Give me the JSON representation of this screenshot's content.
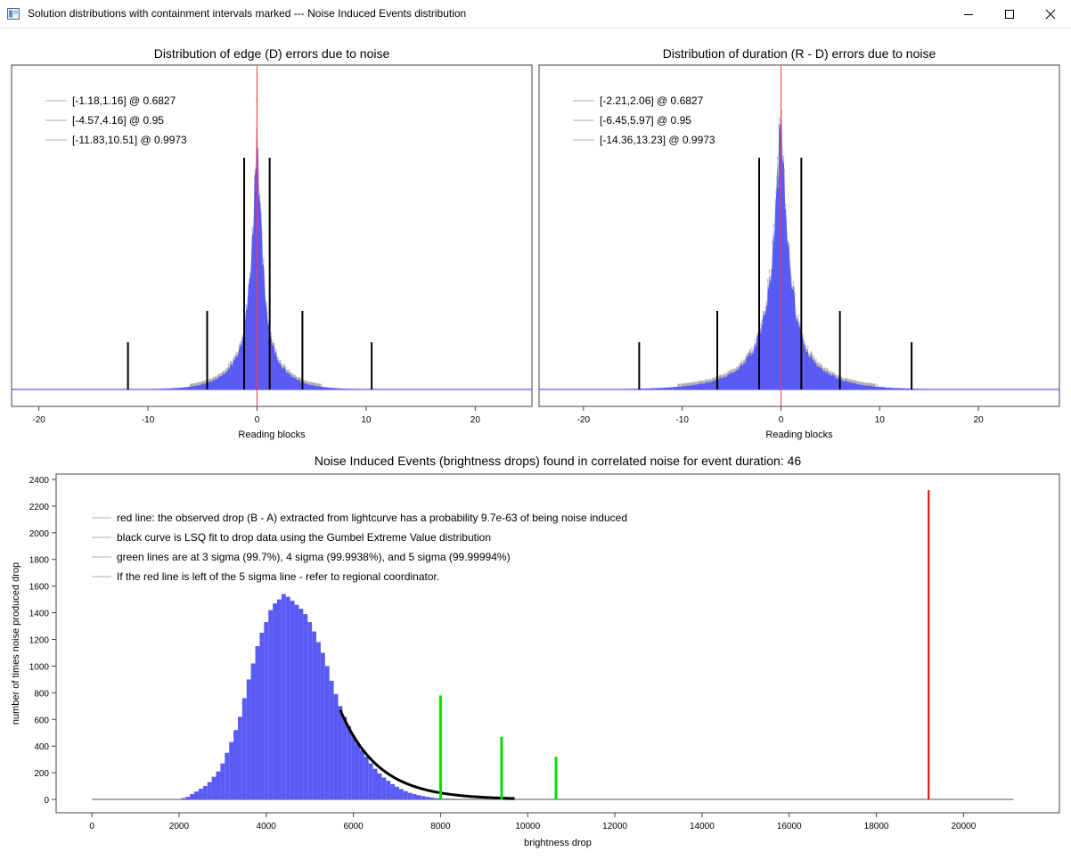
{
  "window": {
    "title": "Solution distributions with containment intervals marked --- Noise Induced Events distribution"
  },
  "colors": {
    "histogram": "#5a5af5",
    "center_line": "#ff3b3b",
    "interval_lines": "#000000",
    "sigma_lines": "#00e000",
    "observed_drop": "#e00000",
    "fit_curve": "#000000",
    "baseline": "#aaaaaa"
  },
  "icons": [
    "app-icon",
    "minimize-icon",
    "maximize-icon",
    "close-icon"
  ],
  "chart_data": [
    {
      "id": "edge",
      "type": "bar",
      "title": "Distribution of edge (D) errors due to noise",
      "xlabel": "Reading blocks",
      "ylabel": "",
      "xlim": [
        -22.5,
        25.2
      ],
      "xticks": [
        -20,
        -10,
        0,
        10,
        20
      ],
      "distribution": {
        "center": 0,
        "scale_left": 1.85,
        "scale_right": 1.75,
        "peak_relative": 1.0
      },
      "center_line_x": 0,
      "legend_position": "top-left",
      "legend": [
        "[-1.18,1.16] @ 0.6827",
        "[-4.57,4.16] @ 0.95",
        "[-11.83,10.51] @ 0.9973"
      ],
      "intervals": [
        {
          "lo": -1.18,
          "hi": 1.16,
          "prob": 0.6827
        },
        {
          "lo": -4.57,
          "hi": 4.16,
          "prob": 0.95
        },
        {
          "lo": -11.83,
          "hi": 10.51,
          "prob": 0.9973
        }
      ]
    },
    {
      "id": "duration",
      "type": "bar",
      "title": "Distribution of duration (R - D) errors due to noise",
      "xlabel": "Reading blocks",
      "ylabel": "",
      "xlim": [
        -24.5,
        28.2
      ],
      "xticks": [
        -20,
        -10,
        0,
        10,
        20
      ],
      "distribution": {
        "center": 0,
        "scale_left": 3.1,
        "scale_right": 2.9,
        "peak_relative": 1.0
      },
      "center_line_x": 0,
      "legend_position": "top-left",
      "legend": [
        "[-2.21,2.06] @ 0.6827",
        "[-6.45,5.97] @ 0.95",
        "[-14.36,13.23] @ 0.9973"
      ],
      "intervals": [
        {
          "lo": -2.21,
          "hi": 2.06,
          "prob": 0.6827
        },
        {
          "lo": -6.45,
          "hi": 5.97,
          "prob": 0.95
        },
        {
          "lo": -14.36,
          "hi": 13.23,
          "prob": 0.9973
        }
      ]
    },
    {
      "id": "drops",
      "type": "bar",
      "title": "Noise Induced Events (brightness drops) found in correlated noise for event duration: 46",
      "xlabel": "brightness drop",
      "ylabel": "number of times noise produced drop",
      "xlim": [
        -820,
        22200
      ],
      "ylim": [
        -100,
        2440
      ],
      "xticks": [
        0,
        2000,
        4000,
        6000,
        8000,
        10000,
        12000,
        14000,
        16000,
        18000,
        20000
      ],
      "yticks": [
        0,
        200,
        400,
        600,
        800,
        1000,
        1200,
        1400,
        1600,
        1800,
        2000,
        2200,
        2400
      ],
      "legend_position": "top-left",
      "legend": [
        "red line: the observed drop (B - A) extracted from lightcurve has a probability 9.7e-63 of being noise induced",
        "black curve is LSQ fit to drop data using the Gumbel Extreme Value distribution",
        "green lines are at 3 sigma (99.7%), 4 sigma (99.9938%), and 5 sigma (99.99994%)",
        "If the red line is left of the 5 sigma line - refer to regional coordinator."
      ],
      "histogram": {
        "x_start": 2050,
        "bin_width": 100,
        "counts": [
          10,
          20,
          40,
          60,
          80,
          100,
          130,
          170,
          210,
          270,
          350,
          430,
          520,
          620,
          760,
          900,
          1020,
          1150,
          1250,
          1330,
          1420,
          1470,
          1500,
          1540,
          1520,
          1490,
          1460,
          1430,
          1390,
          1330,
          1260,
          1180,
          1100,
          1000,
          890,
          790,
          700,
          620,
          550,
          480,
          420,
          370,
          320,
          270,
          230,
          195,
          165,
          140,
          115,
          95,
          78,
          62,
          50,
          40,
          32,
          25,
          19,
          14,
          10,
          7,
          5,
          3,
          2,
          1
        ]
      },
      "baseline": {
        "x_from": 0,
        "x_to": 21150,
        "y": 0
      },
      "fit_curve": {
        "x_from": 5700,
        "x_to": 9700,
        "y_at_start": 670,
        "decay": 880
      },
      "sigma_lines": [
        {
          "label": "3 sigma",
          "x": 8000,
          "height": 780
        },
        {
          "label": "4 sigma",
          "x": 9400,
          "height": 470
        },
        {
          "label": "5 sigma",
          "x": 10650,
          "height": 320
        }
      ],
      "observed_drop": {
        "x": 19200,
        "height": 2320
      }
    }
  ]
}
